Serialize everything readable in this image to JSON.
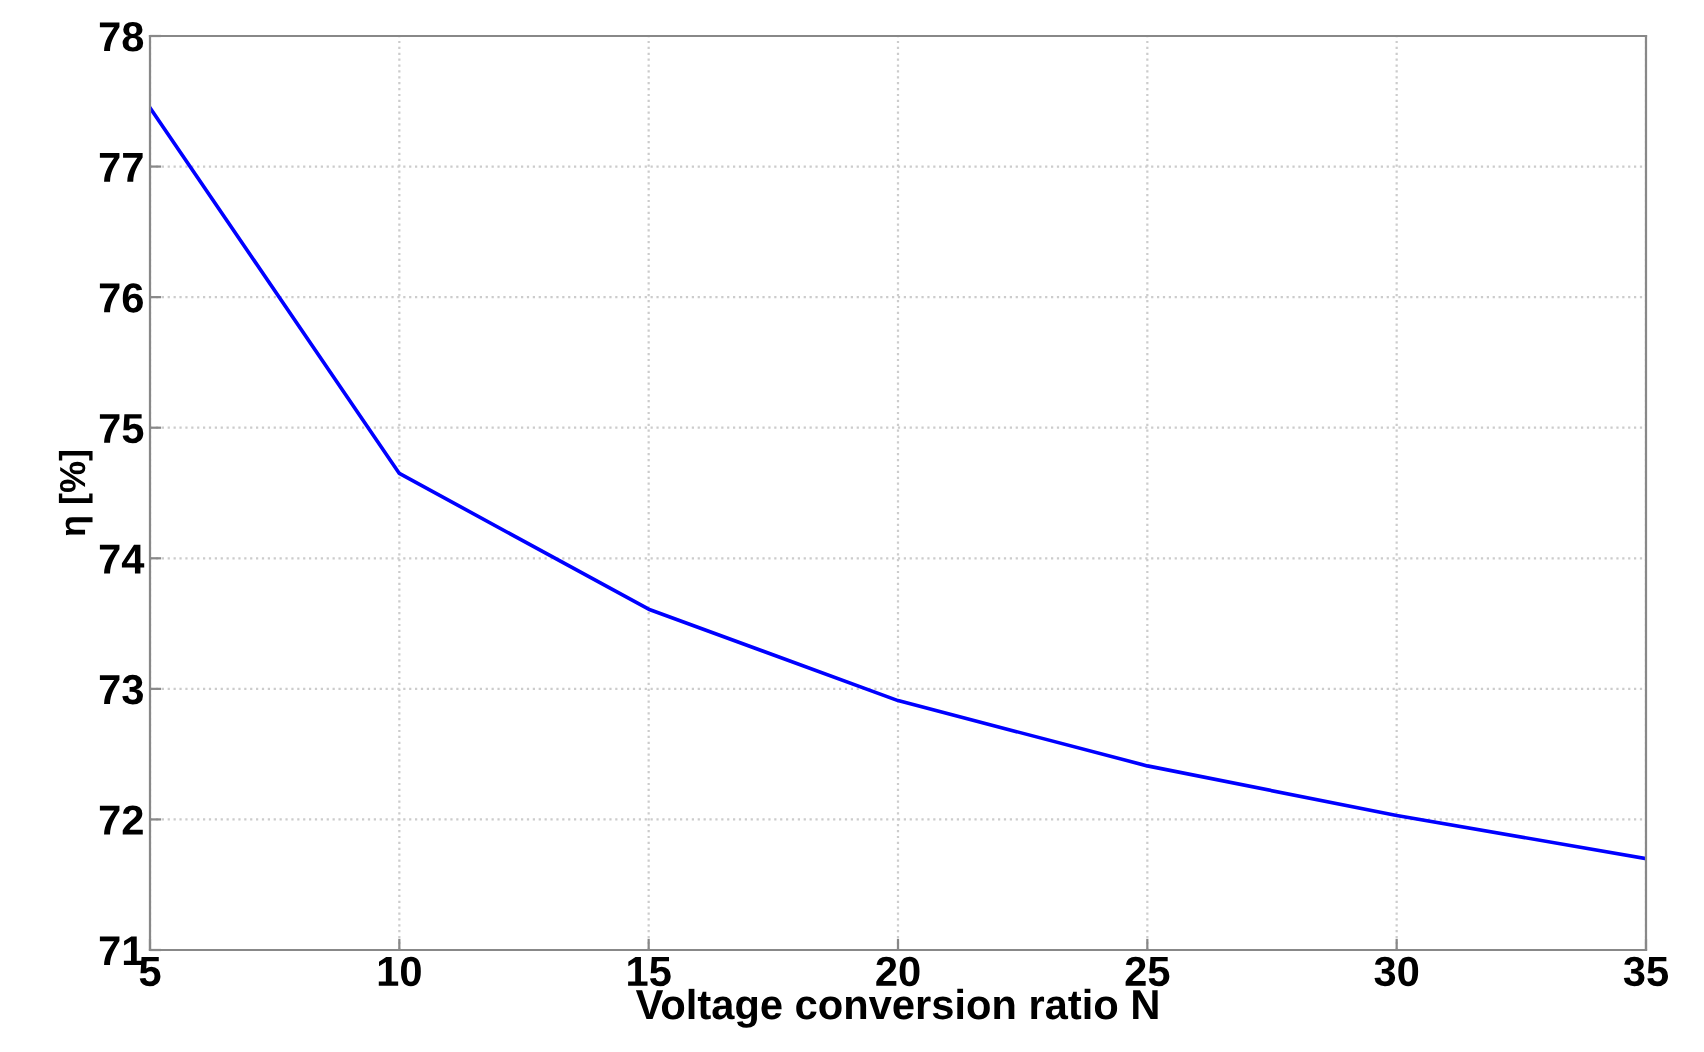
{
  "chart_data": {
    "type": "line",
    "xlabel": "Voltage conversion ratio N",
    "ylabel": "η [%]",
    "x": [
      5,
      10,
      15,
      20,
      25,
      30,
      35
    ],
    "series": [
      {
        "color": "#0000ff",
        "values": [
          77.45,
          74.65,
          73.61,
          72.91,
          72.41,
          72.03,
          71.7
        ]
      }
    ],
    "xlim": [
      5,
      35
    ],
    "xticks": [
      5,
      10,
      15,
      20,
      25,
      30,
      35
    ],
    "ylim": [
      71,
      78
    ],
    "yticks": [
      71,
      72,
      73,
      74,
      75,
      76,
      77,
      78
    ],
    "grid": true,
    "marker": "none",
    "line_style": "solid",
    "legend": false
  }
}
